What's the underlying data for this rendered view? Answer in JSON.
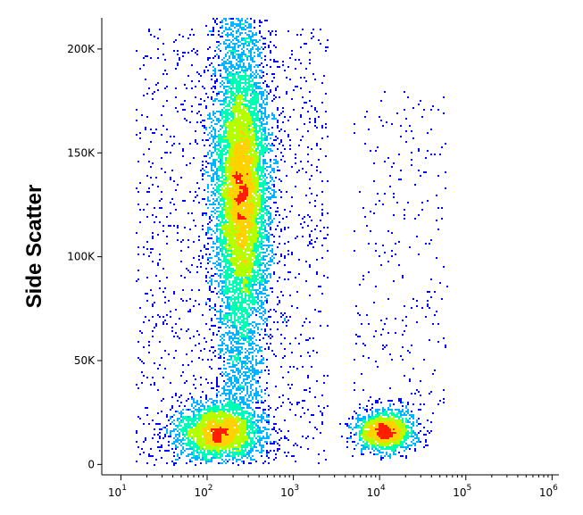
{
  "chart_data": {
    "type": "scatter",
    "title": "",
    "xlabel": "",
    "ylabel": "Side Scatter",
    "x_scale": "log",
    "xlim": [
      6,
      1200000
    ],
    "ylim": [
      -5000,
      215000
    ],
    "grid": false,
    "x_ticks": [
      {
        "value": 10,
        "base": "10",
        "exp": "1"
      },
      {
        "value": 100,
        "base": "10",
        "exp": "2"
      },
      {
        "value": 1000,
        "base": "10",
        "exp": "3"
      },
      {
        "value": 10000,
        "base": "10",
        "exp": "4"
      },
      {
        "value": 100000,
        "base": "10",
        "exp": "5"
      },
      {
        "value": 1000000,
        "base": "10",
        "exp": "6"
      }
    ],
    "y_ticks": [
      {
        "value": 0,
        "label": "0"
      },
      {
        "value": 50000,
        "label": "50K"
      },
      {
        "value": 100000,
        "label": "100K"
      },
      {
        "value": 150000,
        "label": "150K"
      },
      {
        "value": 200000,
        "label": "200K"
      }
    ],
    "density_colors": [
      "#0000ff",
      "#00b4ff",
      "#00ffb4",
      "#b4ff00",
      "#ffd200",
      "#ff1e00"
    ],
    "populations": [
      {
        "shape": "column",
        "x_center": 250,
        "x_spread_log": 0.16,
        "y_min": 20000,
        "y_max": 215000,
        "y_peak": 130000,
        "count": 9000
      },
      {
        "shape": "cluster",
        "x_center": 140,
        "x_spread_log": 0.25,
        "y_center": 15000,
        "y_spread": 7000,
        "count": 2800
      },
      {
        "shape": "cluster",
        "x_center": 11500,
        "x_spread_log": 0.17,
        "y_center": 16000,
        "y_spread": 5000,
        "count": 1700
      },
      {
        "shape": "sparse",
        "x_range": [
          5000,
          60000
        ],
        "y_range": [
          20000,
          180000
        ],
        "count": 260
      },
      {
        "shape": "sparse",
        "x_range": [
          15,
          2500
        ],
        "y_range": [
          0,
          210000
        ],
        "count": 1400
      }
    ]
  }
}
